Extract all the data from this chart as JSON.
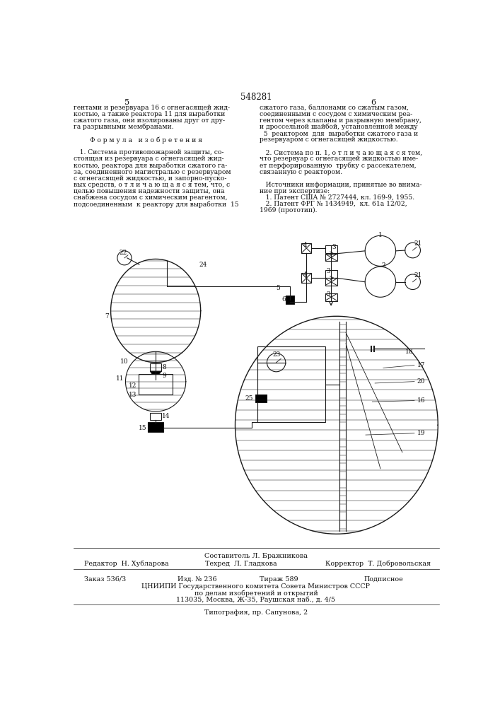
{
  "page_number": "548281",
  "col_left": "5",
  "col_right": "6",
  "text_col1_lines": [
    "гентами и резервуара 16 с огнегасящей жид-",
    "костью, а также реактора 11 для выработки",
    "сжатого газа, они изолированы друг от дру-",
    "га разрывными мембранами.",
    "",
    "        Ф о р м у л а   и з о б р е т е н и я",
    "",
    "   1. Система противопожарной защиты, со-",
    "стоящая из резервуара с огнегасящей жид-",
    "костью, реактора для выработки сжатого га-",
    "за, соединенного магистралью с резервуаром",
    "с огнегасящей жидкостью, и запорно-пуско-",
    "вых средств, о т л и ч а ю щ а я с я тем, что, с",
    "целью повышения надежности защиты, она",
    "снабжена сосудом с химическим реагентом,",
    "подсоединенным  к реактору для выработки  15"
  ],
  "text_col2_lines": [
    "сжатого газа, баллонами со сжатым газом,",
    "соединенными с сосудом с химическим реа-",
    "гентом через клапаны и разрывную мембрану,",
    "и дроссельной шайбой, установленной между",
    "  5  реактором  для  выработки сжатого газа и",
    "резервуаром с огнегасящей жидкостью.",
    "",
    "   2. Система по п. 1, о т л и ч а ю щ а я с я тем,",
    "что резервуар с огнегасящей жидкостью име-",
    "ет перфорированную  трубку с рассекателем,",
    "связанную с реактором.",
    "",
    "   Источники информации, принятые во внима-",
    "ние при экспертизе:",
    "   1. Патент США № 2727444, кл. 169-9, 1955.",
    "   2. Патент ФРГ № 1434949,  кл. 61а 12/02,",
    "1969 (прототип)."
  ],
  "footer_composer": "Составитель Л. Бражникова",
  "footer_editor": "Редактор  Н. Хубларова",
  "footer_tech": "Техред  Л. Гладкова",
  "footer_corrector": "Корректор  Т. Добровольская",
  "footer_order": "Заказ 536/3",
  "footer_izd": "Изд. № 236",
  "footer_tirazh": "Тираж 589",
  "footer_podpisnoe": "Подписное",
  "footer_org": "ЦНИИПИ Государственного комитета Совета Министров СССР",
  "footer_org2": "по делам изобретений и открытий",
  "footer_addr": "113035, Москва, Ж-35, Раушская наб., д. 4/5",
  "footer_print": "Типография, пр. Сапунова, 2",
  "bg_color": "#ffffff",
  "line_color": "#1a1a1a",
  "text_color": "#111111"
}
